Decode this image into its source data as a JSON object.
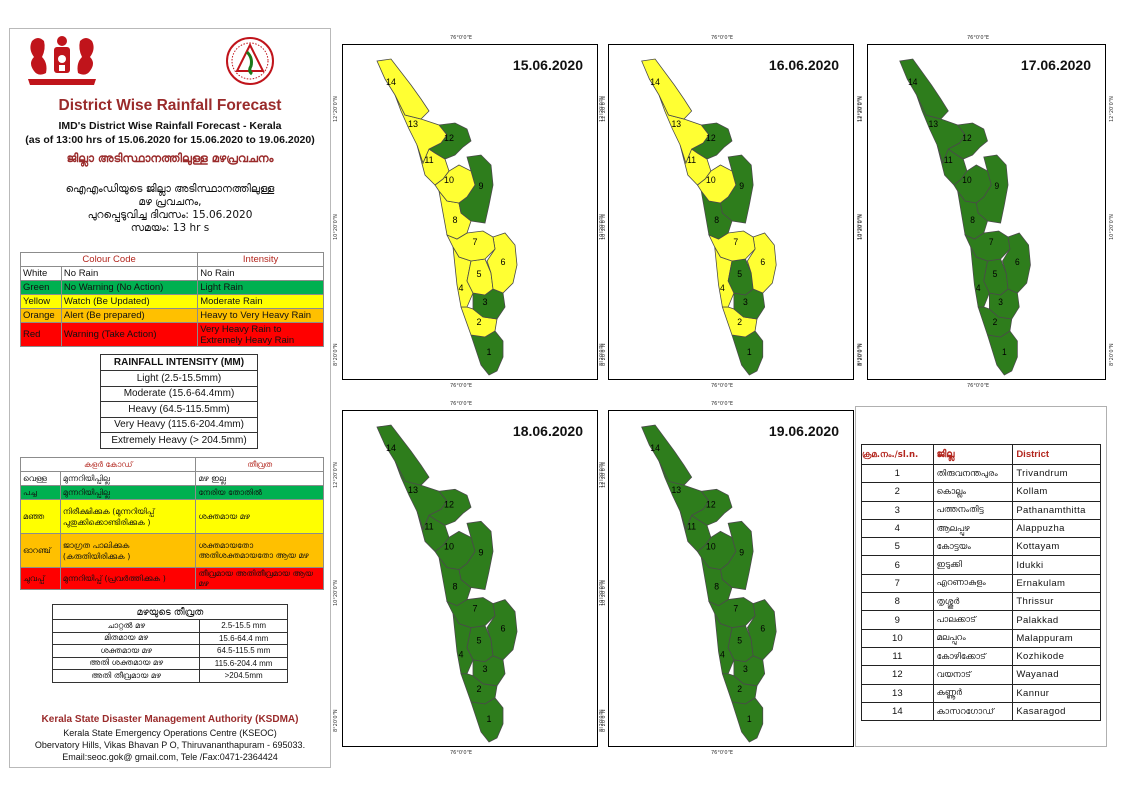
{
  "header": {
    "title": "District Wise Rainfall Forecast",
    "subtitle_1": "IMD's District Wise Rainfall Forecast - Kerala",
    "subtitle_2": "(as of 13:00 hrs of 15.06.2020  for 15.06.2020  to 19.06.2020)",
    "ml_title": "ജില്ലാ അടിസ്ഥാനത്തിലുള്ള മഴപ്രവചനം",
    "ml_line_1": "ഐഎംഡിയുടെ ജില്ലാ   അടിസ്ഥാനത്തിലുള്ള",
    "ml_line_2": "മഴ പ്രവചനം,",
    "ml_line_3": "പുറപ്പെടുവിച്ച     ദിവസം: 15.06.2020",
    "ml_line_4": "സമയം: 13 hr s"
  },
  "colour_code": {
    "header_code": "Colour Code",
    "header_intensity": "Intensity",
    "rows": [
      {
        "colour": "White",
        "code": "No Rain",
        "intensity": "No Rain",
        "bg": "#ffffff"
      },
      {
        "colour": "Green",
        "code": "No Warning (No Action)",
        "intensity": "Light Rain",
        "bg": "#00b050"
      },
      {
        "colour": "Yellow",
        "code": "Watch (Be Updated)",
        "intensity": "Moderate Rain",
        "bg": "#ffff00"
      },
      {
        "colour": "Orange",
        "code": "Alert (Be prepared)",
        "intensity": "Heavy to Very Heavy Rain",
        "bg": "#ffc000"
      },
      {
        "colour": "Red",
        "code": "Warning (Take Action)",
        "intensity": "Very Heavy Rain to Extremely Heavy Rain",
        "bg": "#ff0000"
      }
    ]
  },
  "rainfall_intensity": {
    "title": "RAINFALL INTENSITY (MM)",
    "rows": [
      "Light (2.5-15.5mm)",
      "Moderate (15.6-64.4mm)",
      "Heavy (64.5-115.5mm)",
      "Very Heavy (115.6-204.4mm)",
      "Extremely Heavy (> 204.5mm)"
    ]
  },
  "colour_code_ml": {
    "header_code": "കളർ കോഡ്",
    "header_intensity": "തീവ്രത",
    "rows": [
      {
        "colour": "വെള്ള",
        "code": "മുന്നറിയിപ്പില്ല",
        "intensity": "മഴ ഇല്ല",
        "bg": "#ffffff"
      },
      {
        "colour": "പച്ച",
        "code": "മുന്നറിയിപ്പില്ല",
        "intensity": "നേരിയ തോതിൽ",
        "bg": "#00b050"
      },
      {
        "colour": "മഞ്ഞ",
        "code": "നിരീക്ഷിക്കുക (മുന്നറിയിപ്പ് പുതുക്കിക്കൊണ്ടിരിക്കുക )",
        "intensity": "ശക്തമായ മഴ",
        "bg": "#ffff00"
      },
      {
        "colour": "ഓറഞ്ച്",
        "code": "ജാഗ്രത പാലിക്കുക (കരുതിയിരിക്കുക )",
        "intensity": "ശക്തമായതോ അതിശക്തമായതോ ആയ മഴ",
        "bg": "#ffc000"
      },
      {
        "colour": "ചുവപ്പ്",
        "code": "മുന്നറിയിപ്പ് (പ്രവർത്തിക്കുക )",
        "intensity": "തീവ്രമായ അതിതീവ്രമായ ആയ മഴ",
        "bg": "#ff0000"
      }
    ]
  },
  "rainfall_intensity_ml": {
    "title": "മഴയുടെ  തീവ്രത",
    "rows": [
      {
        "label": "ചാറ്റൽ  മഴ",
        "value": "2.5-15.5 mm"
      },
      {
        "label": "മിതമായ  മഴ",
        "value": "15.6-64.4 mm"
      },
      {
        "label": "ശക്തമായ  മഴ",
        "value": "64.5-115.5 mm"
      },
      {
        "label": "അതി ശക്തമായ  മഴ",
        "value": "115.6-204.4 mm"
      },
      {
        "label": "അതി തീവ്രമായ മഴ",
        "value": ">204.5mm"
      }
    ]
  },
  "footer": {
    "org": "Kerala State Disaster Management Authority (KSDMA)",
    "line_1": "Kerala State Emergency Operations Centre (KSEOC)",
    "line_2": "Obervatory Hills, Vikas Bhavan P O, Thiruvananthapuram - 695033.",
    "line_3": "Email:seoc.gok@ gmail.com, Tele /Fax:0471-2364424"
  },
  "colors": {
    "green": "#2e7d1c",
    "yellow": "#ffff33"
  },
  "maps": [
    {
      "date": "15.06.2020",
      "fills": {
        "1": "green",
        "2": "yellow",
        "3": "green",
        "4": "yellow",
        "5": "yellow",
        "6": "yellow",
        "7": "yellow",
        "8": "yellow",
        "9": "green",
        "10": "yellow",
        "11": "yellow",
        "12": "green",
        "13": "yellow",
        "14": "yellow"
      }
    },
    {
      "date": "16.06.2020",
      "fills": {
        "1": "green",
        "2": "yellow",
        "3": "green",
        "4": "yellow",
        "5": "green",
        "6": "yellow",
        "7": "yellow",
        "8": "green",
        "9": "green",
        "10": "yellow",
        "11": "yellow",
        "12": "green",
        "13": "yellow",
        "14": "yellow"
      }
    },
    {
      "date": "17.06.2020",
      "fills": {
        "1": "green",
        "2": "green",
        "3": "green",
        "4": "green",
        "5": "green",
        "6": "green",
        "7": "green",
        "8": "green",
        "9": "green",
        "10": "green",
        "11": "green",
        "12": "green",
        "13": "green",
        "14": "green"
      }
    },
    {
      "date": "18.06.2020",
      "fills": {
        "1": "green",
        "2": "green",
        "3": "green",
        "4": "green",
        "5": "green",
        "6": "green",
        "7": "green",
        "8": "green",
        "9": "green",
        "10": "green",
        "11": "green",
        "12": "green",
        "13": "green",
        "14": "green"
      }
    },
    {
      "date": "19.06.2020",
      "fills": {
        "1": "green",
        "2": "green",
        "3": "green",
        "4": "green",
        "5": "green",
        "6": "green",
        "7": "green",
        "8": "green",
        "9": "green",
        "10": "green",
        "11": "green",
        "12": "green",
        "13": "green",
        "14": "green"
      }
    }
  ],
  "map_coords": {
    "top": "76°0'0\"E",
    "left_upper": "12°20'0\"N",
    "left_middle": "10°20'0\"N",
    "left_lower": "8°20'0\"N"
  },
  "districts": {
    "header_no": "ക്രമ.നം./sl.n.",
    "header_ml": "ജില്ല",
    "header_en": "District",
    "rows": [
      {
        "no": "1",
        "ml": "തിരുവനന്തപുരം",
        "en": "Trivandrum"
      },
      {
        "no": "2",
        "ml": "കൊല്ലം",
        "en": "Kollam"
      },
      {
        "no": "3",
        "ml": "പത്തനംതിട്ട",
        "en": "Pathanamthitta"
      },
      {
        "no": "4",
        "ml": "ആലപ്പുഴ",
        "en": "Alappuzha"
      },
      {
        "no": "5",
        "ml": "കോട്ടയം",
        "en": "Kottayam"
      },
      {
        "no": "6",
        "ml": "ഇടുക്കി",
        "en": "Idukki"
      },
      {
        "no": "7",
        "ml": "എറണാകുളം",
        "en": "Ernakulam"
      },
      {
        "no": "8",
        "ml": "തൃശ്ശൂർ",
        "en": "Thrissur"
      },
      {
        "no": "9",
        "ml": "പാലക്കാട്",
        "en": "Palakkad"
      },
      {
        "no": "10",
        "ml": "മലപ്പുറം",
        "en": "Malappuram"
      },
      {
        "no": "11",
        "ml": "കോഴിക്കോട്",
        "en": "Kozhikode"
      },
      {
        "no": "12",
        "ml": "വയനാട്",
        "en": "Wayanad"
      },
      {
        "no": "13",
        "ml": "കണ്ണൂർ",
        "en": "Kannur"
      },
      {
        "no": "14",
        "ml": "കാസറഗോഡ്",
        "en": "Kasaragod"
      }
    ]
  }
}
